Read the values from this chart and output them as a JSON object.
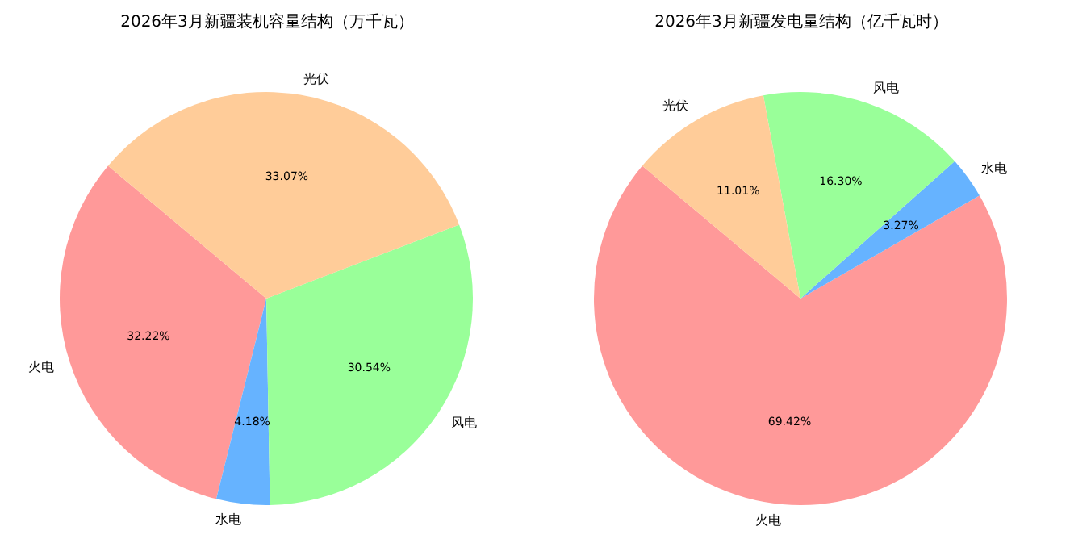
{
  "chart_data": [
    {
      "type": "pie",
      "title": "2026年3月新疆装机容量结构（万千瓦）",
      "categories": [
        "火电",
        "水电",
        "风电",
        "光伏"
      ],
      "values": [
        32.22,
        4.18,
        30.54,
        33.07
      ],
      "colors": [
        "#ff9999",
        "#66b3ff",
        "#99ff99",
        "#ffcc99"
      ],
      "value_labels": [
        "32.22%",
        "4.18%",
        "30.54%",
        "33.07%"
      ]
    },
    {
      "type": "pie",
      "title": "2026年3月新疆发电量结构（亿千瓦时）",
      "categories": [
        "火电",
        "水电",
        "风电",
        "光伏"
      ],
      "values": [
        69.42,
        3.27,
        16.3,
        11.01
      ],
      "colors": [
        "#ff9999",
        "#66b3ff",
        "#99ff99",
        "#ffcc99"
      ],
      "value_labels": [
        "69.42%",
        "3.27%",
        "16.30%",
        "11.01%"
      ]
    }
  ]
}
